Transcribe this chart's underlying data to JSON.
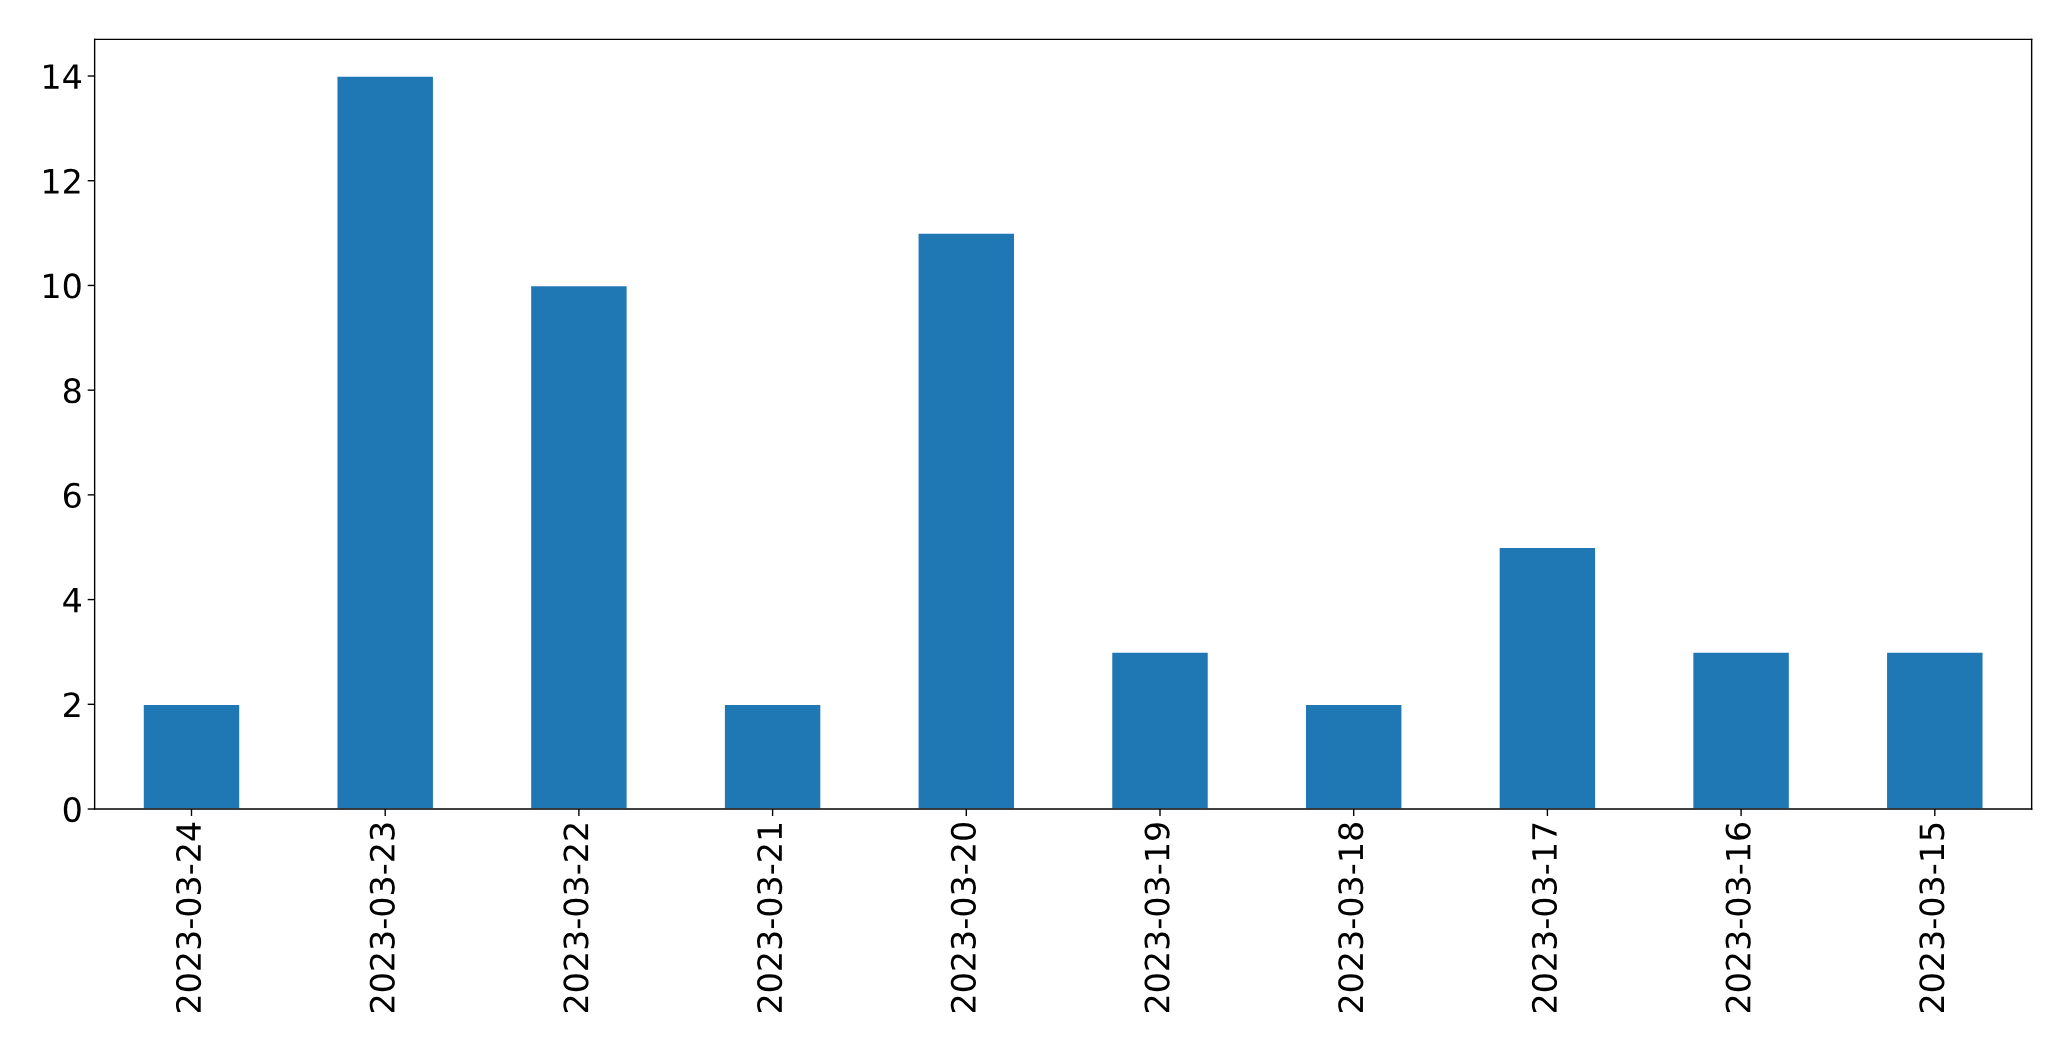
{
  "chart_data": {
    "type": "bar",
    "categories": [
      "2023-03-24",
      "2023-03-23",
      "2023-03-22",
      "2023-03-21",
      "2023-03-20",
      "2023-03-19",
      "2023-03-18",
      "2023-03-17",
      "2023-03-16",
      "2023-03-15"
    ],
    "values": [
      2,
      14,
      10,
      2,
      11,
      3,
      2,
      5,
      3,
      3
    ],
    "color": "#1f77b4",
    "ylim": [
      0,
      14.7
    ],
    "yticks": [
      0,
      2,
      4,
      6,
      8,
      10,
      12,
      14
    ],
    "grid": false,
    "legend": false
  }
}
